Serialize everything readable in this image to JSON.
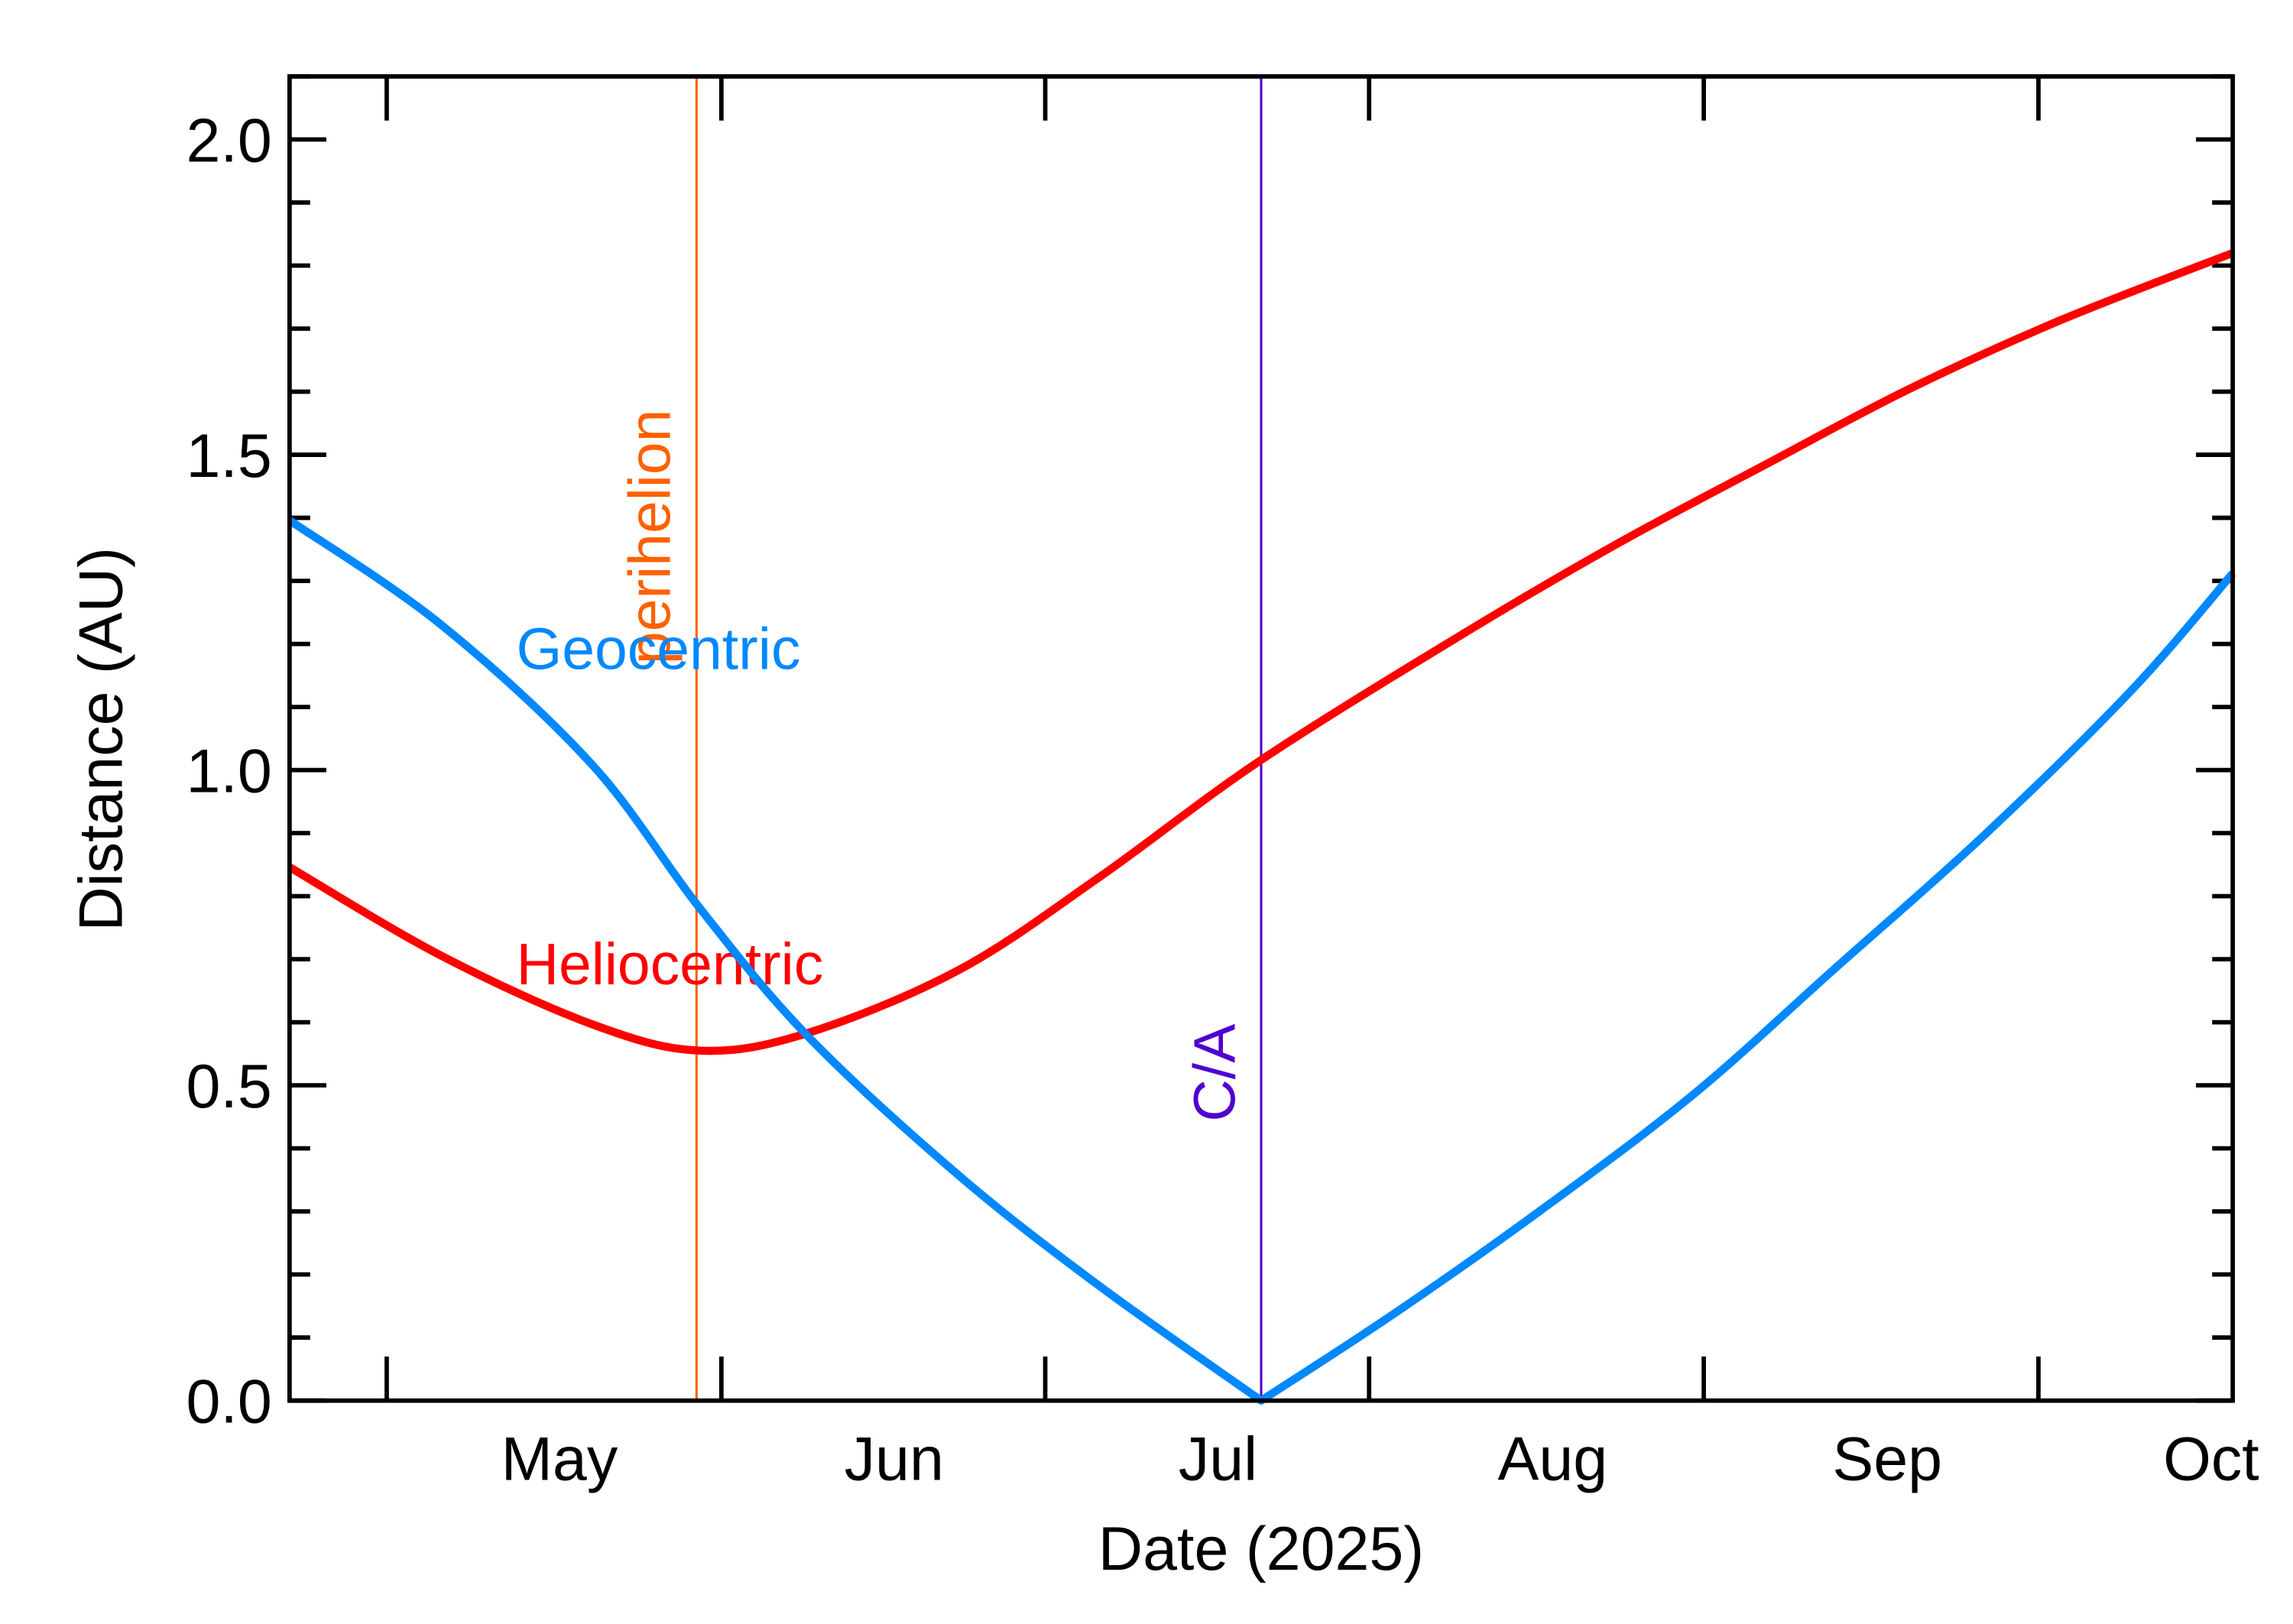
{
  "chart_data": {
    "type": "line",
    "title": "",
    "xlabel": "Date (2025)",
    "ylabel": "Distance (AU)",
    "x_units": "day of year 2025",
    "xlim": [
      96,
      276
    ],
    "ylim": [
      0,
      2.1
    ],
    "grid": false,
    "y_ticks": [
      {
        "value": 0.0,
        "label": "0.0"
      },
      {
        "value": 0.5,
        "label": "0.5"
      },
      {
        "value": 1.0,
        "label": "1.0"
      },
      {
        "value": 1.5,
        "label": "1.5"
      },
      {
        "value": 2.0,
        "label": "2.0"
      }
    ],
    "y_minor_step": 0.1,
    "x_tick_marks": [
      105,
      136,
      166,
      196,
      227,
      258
    ],
    "x_labels": [
      {
        "value": 121,
        "label": "May"
      },
      {
        "value": 152,
        "label": "Jun"
      },
      {
        "value": 182,
        "label": "Jul"
      },
      {
        "value": 213,
        "label": "Aug"
      },
      {
        "value": 244,
        "label": "Sep"
      },
      {
        "value": 274,
        "label": "Oct"
      }
    ],
    "series": [
      {
        "name": "Heliocentric",
        "color": "#ff0000",
        "x": [
          96,
          110,
          124,
          134,
          144,
          158,
          171,
          186,
          205,
          219,
          233,
          246,
          260,
          276
        ],
        "y": [
          0.846,
          0.706,
          0.597,
          0.555,
          0.583,
          0.683,
          0.83,
          1.016,
          1.219,
          1.359,
          1.487,
          1.604,
          1.713,
          1.82
        ],
        "label_pos": {
          "x": 117,
          "y": 0.66
        }
      },
      {
        "name": "Geocentric",
        "color": "#0088ff",
        "x": [
          96,
          110,
          124,
          134,
          144,
          158,
          171,
          186,
          198.5,
          212,
          226,
          239,
          253,
          266.6,
          276
        ],
        "y": [
          1.396,
          1.231,
          1.009,
          0.781,
          0.578,
          0.357,
          0.182,
          0.0,
          0.14,
          0.303,
          0.485,
          0.683,
          0.897,
          1.126,
          1.312
        ],
        "label_pos": {
          "x": 117,
          "y": 1.16
        }
      }
    ],
    "annotations": [
      {
        "label": "perihelion",
        "x": 133.7,
        "color": "#ff6000",
        "label_y": 1.37
      },
      {
        "label": "C/A",
        "x": 186,
        "color": "#5000d0",
        "label_y": 0.52
      }
    ]
  }
}
